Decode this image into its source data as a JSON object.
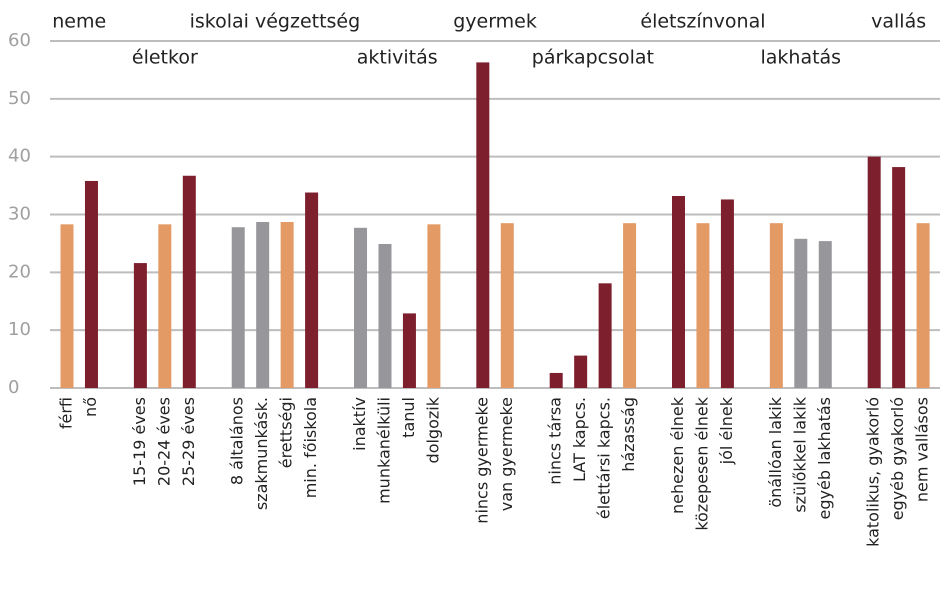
{
  "chart_data": {
    "type": "bar",
    "ylim": [
      0,
      60
    ],
    "yticks": [
      0,
      10,
      20,
      30,
      40,
      50,
      60
    ],
    "grid": true,
    "groups": [
      {
        "name": "neme",
        "categories": [
          "férfi",
          "nő"
        ],
        "values": [
          28.3,
          35.8
        ],
        "colors": [
          "#e39a65",
          "#7d1f2d"
        ]
      },
      {
        "name": "életkor",
        "categories": [
          "15-19 éves",
          "20-24 éves",
          "25-29 éves"
        ],
        "values": [
          21.6,
          28.3,
          36.7
        ],
        "colors": [
          "#7d1f2d",
          "#e39a65",
          "#7d1f2d"
        ]
      },
      {
        "name": "iskolai végzettség",
        "categories": [
          "8 általános",
          "szakmunkásk.",
          "érettségi",
          "min. főiskola"
        ],
        "values": [
          27.8,
          28.7,
          28.7,
          33.8
        ],
        "colors": [
          "#97979b",
          "#97979b",
          "#e39a65",
          "#7d1f2d"
        ]
      },
      {
        "name": "aktivitás",
        "categories": [
          "inaktív",
          "munkanélküli",
          "tanul",
          "dolgozik"
        ],
        "values": [
          27.7,
          24.9,
          12.9,
          28.3
        ],
        "colors": [
          "#97979b",
          "#97979b",
          "#7d1f2d",
          "#e39a65"
        ]
      },
      {
        "name": "gyermek",
        "categories": [
          "nincs gyermeke",
          "van gyermeke"
        ],
        "values": [
          56.3,
          28.5
        ],
        "colors": [
          "#7d1f2d",
          "#e39a65"
        ]
      },
      {
        "name": "párkapcsolat",
        "categories": [
          "nincs társa",
          "LAT kapcs.",
          "élettársi kapcs.",
          "házasság"
        ],
        "values": [
          2.6,
          5.6,
          18.1,
          28.5
        ],
        "colors": [
          "#7d1f2d",
          "#7d1f2d",
          "#7d1f2d",
          "#e39a65"
        ]
      },
      {
        "name": "életszínvonal",
        "categories": [
          "nehezen élnek",
          "közepesen élnek",
          "jól élnek"
        ],
        "values": [
          33.2,
          28.5,
          32.6
        ],
        "colors": [
          "#7d1f2d",
          "#e39a65",
          "#7d1f2d"
        ]
      },
      {
        "name": "lakhatás",
        "categories": [
          "önállóan lakik",
          "szülőkkel lakik",
          "egyéb lakhatás"
        ],
        "values": [
          28.5,
          25.8,
          25.4
        ],
        "colors": [
          "#e39a65",
          "#97979b",
          "#97979b"
        ]
      },
      {
        "name": "vallás",
        "categories": [
          "katolikus, gyakorló",
          "egyéb gyakorló",
          "nem vallásos"
        ],
        "values": [
          40.0,
          38.2,
          28.5
        ],
        "colors": [
          "#7d1f2d",
          "#7d1f2d",
          "#e39a65"
        ]
      }
    ]
  }
}
